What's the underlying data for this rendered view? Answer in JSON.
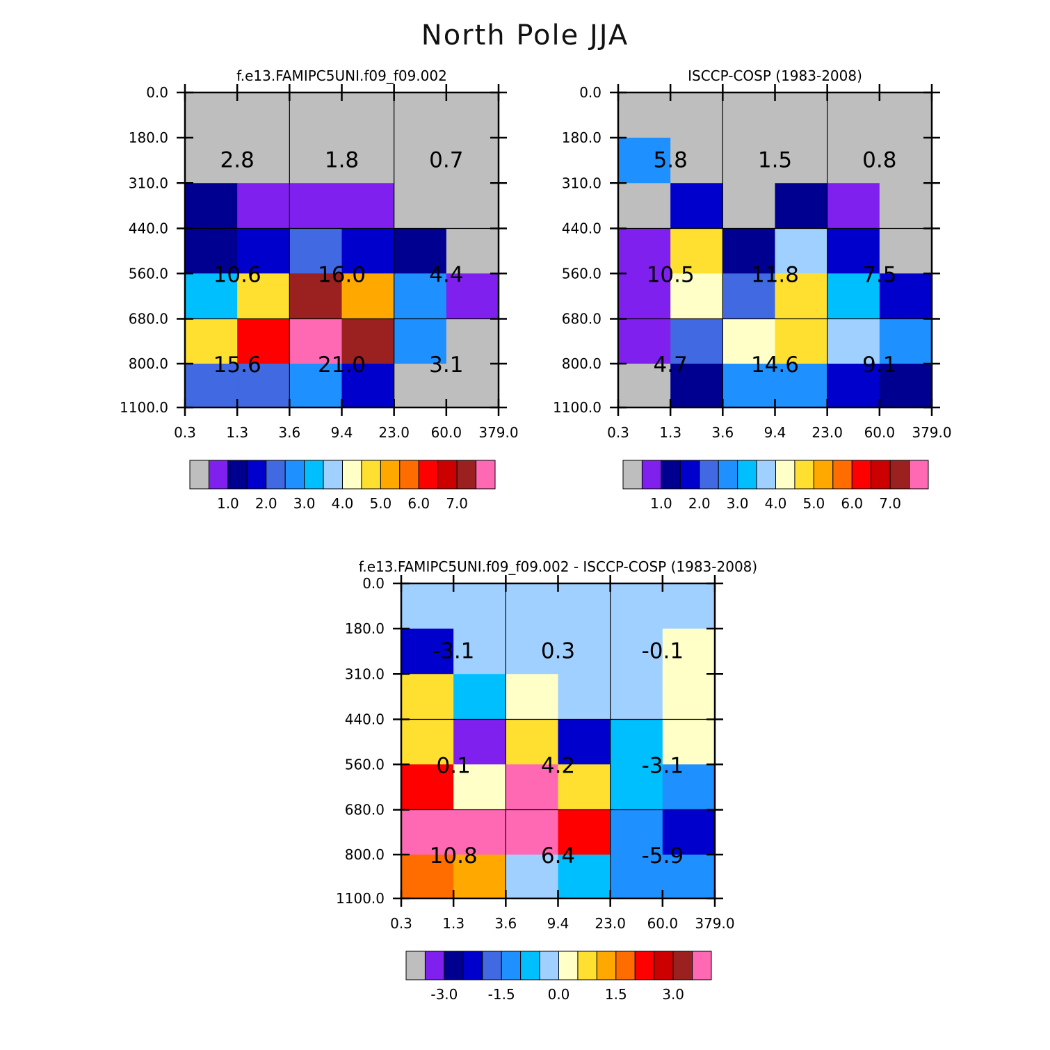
{
  "title": "North Pole JJA",
  "colors": {
    "palette": [
      "#bebebe",
      "#8020ee",
      "#000090",
      "#0000cd",
      "#4169e1",
      "#1e90ff",
      "#00bfff",
      "#a0d0ff",
      "#ffffc8",
      "#ffe030",
      "#ffa800",
      "#ff6c00",
      "#ff0000",
      "#cd0000",
      "#9b2020",
      "#ff69b4"
    ],
    "grid": "#000000",
    "axis": "#000000"
  },
  "chart_data": [
    {
      "type": "heatmap",
      "title": "f.e13.FAMIPC5UNI.f09_f09.002",
      "x_tick_labels": [
        "0.3",
        "1.3",
        "3.6",
        "9.4",
        "23.0",
        "60.0",
        "379.0"
      ],
      "y_tick_labels": [
        "0.0",
        "180.0",
        "310.0",
        "440.0",
        "560.0",
        "680.0",
        "800.0",
        "1100.0"
      ],
      "cell_color_index": [
        [
          0,
          0,
          0,
          0,
          0,
          0
        ],
        [
          0,
          0,
          0,
          0,
          0,
          0
        ],
        [
          2,
          1,
          1,
          1,
          0,
          0
        ],
        [
          2,
          3,
          4,
          3,
          2,
          0
        ],
        [
          6,
          9,
          14,
          10,
          5,
          1
        ],
        [
          9,
          12,
          15,
          14,
          5,
          0
        ],
        [
          4,
          4,
          5,
          3,
          0,
          0
        ]
      ],
      "block_values": [
        [
          "2.8",
          "1.8",
          "0.7"
        ],
        [
          "10.6",
          "16.0",
          "4.4"
        ],
        [
          "15.6",
          "21.0",
          "3.1"
        ]
      ],
      "colorbar_labels": [
        "1.0",
        "2.0",
        "3.0",
        "4.0",
        "5.0",
        "6.0",
        "7.0"
      ]
    },
    {
      "type": "heatmap",
      "title": "ISCCP-COSP (1983-2008)",
      "x_tick_labels": [
        "0.3",
        "1.3",
        "3.6",
        "9.4",
        "23.0",
        "60.0",
        "379.0"
      ],
      "y_tick_labels": [
        "0.0",
        "180.0",
        "310.0",
        "440.0",
        "560.0",
        "680.0",
        "800.0",
        "1100.0"
      ],
      "cell_color_index": [
        [
          0,
          0,
          0,
          0,
          0,
          0
        ],
        [
          5,
          0,
          0,
          0,
          0,
          0
        ],
        [
          0,
          3,
          0,
          2,
          1,
          0
        ],
        [
          1,
          9,
          2,
          7,
          3,
          0
        ],
        [
          1,
          8,
          4,
          9,
          6,
          3
        ],
        [
          1,
          4,
          8,
          9,
          7,
          5
        ],
        [
          0,
          2,
          5,
          5,
          3,
          2
        ]
      ],
      "block_values": [
        [
          "5.8",
          "1.5",
          "0.8"
        ],
        [
          "10.5",
          "11.8",
          "7.5"
        ],
        [
          "4.7",
          "14.6",
          "9.1"
        ]
      ],
      "colorbar_labels": [
        "1.0",
        "2.0",
        "3.0",
        "4.0",
        "5.0",
        "6.0",
        "7.0"
      ]
    },
    {
      "type": "heatmap",
      "title": "f.e13.FAMIPC5UNI.f09_f09.002 - ISCCP-COSP (1983-2008)",
      "x_tick_labels": [
        "0.3",
        "1.3",
        "3.6",
        "9.4",
        "23.0",
        "60.0",
        "379.0"
      ],
      "y_tick_labels": [
        "0.0",
        "180.0",
        "310.0",
        "440.0",
        "560.0",
        "680.0",
        "800.0",
        "1100.0"
      ],
      "cell_color_index": [
        [
          7,
          7,
          7,
          7,
          7,
          7
        ],
        [
          3,
          7,
          7,
          7,
          7,
          8
        ],
        [
          9,
          6,
          8,
          7,
          7,
          8
        ],
        [
          9,
          1,
          9,
          3,
          6,
          8
        ],
        [
          12,
          8,
          15,
          9,
          6,
          5
        ],
        [
          15,
          15,
          15,
          12,
          5,
          3
        ],
        [
          11,
          10,
          7,
          6,
          5,
          5
        ]
      ],
      "block_values": [
        [
          "-3.1",
          "0.3",
          "-0.1"
        ],
        [
          "0.1",
          "4.2",
          "-3.1"
        ],
        [
          "10.8",
          "6.4",
          "-5.9"
        ]
      ],
      "colorbar_labels": [
        "-3.0",
        "-1.5",
        "0.0",
        "1.5",
        "3.0"
      ]
    }
  ]
}
